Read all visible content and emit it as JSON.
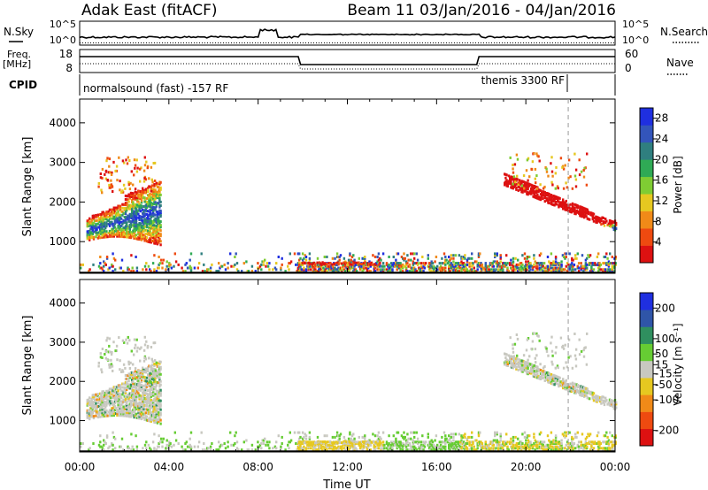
{
  "header": {
    "station": "Adak East (fitACF)",
    "beam_title": "Beam 11  03/Jan/2016 - 04/Jan/2016"
  },
  "summary": {
    "nsky_label": "N.Sky",
    "nsky_ticks": [
      "10^5",
      "10^0"
    ],
    "nsearch_label": "N.Search",
    "nsearch_ticks": [
      "10^5",
      "10^0"
    ],
    "freq_label": [
      "Freq.",
      "[MHz]"
    ],
    "freq_ticks": [
      "18",
      "8"
    ],
    "nave_label": "Nave",
    "nave_ticks": [
      "60",
      "0"
    ],
    "cpid_label": "CPID",
    "cpid_modes": [
      {
        "text": "normalsound (fast) -157 RF"
      },
      {
        "text": "themis 3300 RF"
      }
    ]
  },
  "chart_data": [
    {
      "type": "heatmap",
      "name": "power",
      "ylabel": "Slant Range [km]",
      "yticks": [
        "1000",
        "2000",
        "3000",
        "4000"
      ],
      "ylim": [
        200,
        4600
      ],
      "xlim": [
        0,
        24
      ],
      "colorbar_label": "Power [dB]",
      "colorbar_ticks": [
        "4",
        "8",
        "12",
        "16",
        "20",
        "24",
        "28"
      ],
      "colorbar_range": [
        0,
        30
      ],
      "colors": [
        "#1f2fe0",
        "#3355bb",
        "#2f7f7f",
        "#2faa55",
        "#7fcc33",
        "#e6c820",
        "#f08a18",
        "#ee4a10",
        "#dd1111"
      ],
      "echo_regions": [
        {
          "t_start": 0.3,
          "t_end": 3.6,
          "r_low": 900,
          "r_high": 2300,
          "peak_range": 1300
        },
        {
          "t_start": 19.0,
          "t_end": 24.0,
          "r_low": 1100,
          "r_high": 2100,
          "peak_range": 1400
        },
        {
          "t_start": 9.7,
          "t_end": 13.5,
          "r_low": 250,
          "r_high": 450,
          "peak_range": 350
        }
      ],
      "grid": false
    },
    {
      "type": "heatmap",
      "name": "velocity",
      "xlabel": "Time UT",
      "ylabel": "Slant Range [km]",
      "yticks": [
        "1000",
        "2000",
        "3000",
        "4000"
      ],
      "xticks": [
        "00:00",
        "04:00",
        "08:00",
        "12:00",
        "16:00",
        "20:00",
        "00:00"
      ],
      "ylim": [
        200,
        4600
      ],
      "xlim": [
        0,
        24
      ],
      "colorbar_label": "Velocity [m s⁻¹]",
      "colorbar_ticks": [
        "200",
        "100",
        "50",
        "15",
        "-15",
        "-50",
        "-100",
        "-200"
      ],
      "colorbar_range": [
        -250,
        250
      ],
      "colors": [
        "#1f2fe0",
        "#2f55a8",
        "#2f8f5f",
        "#66cc33",
        "#c8c8c0",
        "#e6c820",
        "#f08a18",
        "#ee4a10",
        "#dd1111"
      ],
      "grid": false
    }
  ],
  "time_marker_ut": 21.9
}
